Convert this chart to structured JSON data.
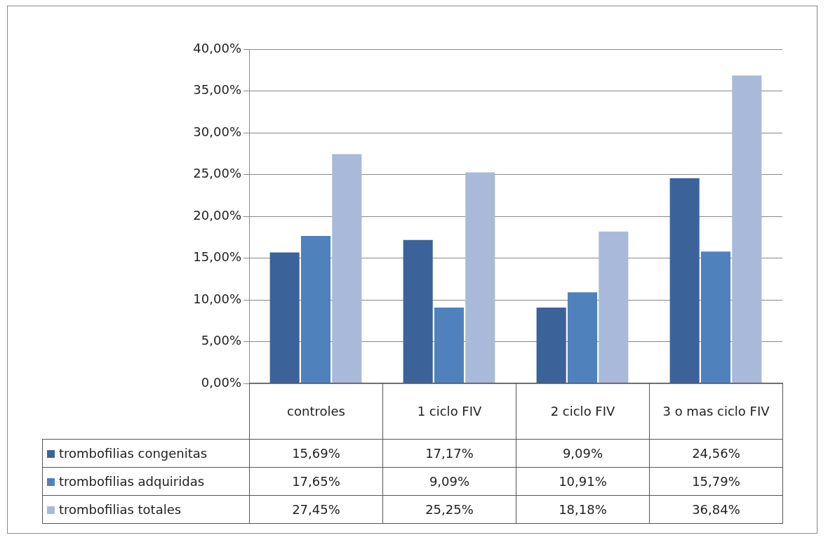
{
  "chart_data": {
    "type": "bar",
    "categories": [
      "controles",
      "1 ciclo FIV",
      "2 ciclo FIV",
      "3 o mas ciclo FIV"
    ],
    "series": [
      {
        "name": "trombofilias congenitas",
        "color": "#3c6399",
        "values": [
          15.69,
          17.17,
          9.09,
          24.56
        ],
        "value_labels": [
          "15,69%",
          "17,17%",
          "9,09%",
          "24,56%"
        ]
      },
      {
        "name": "trombofilias adquiridas",
        "color": "#4f81bd",
        "values": [
          17.65,
          9.09,
          10.91,
          15.79
        ],
        "value_labels": [
          "17,65%",
          "9,09%",
          "10,91%",
          "15,79%"
        ]
      },
      {
        "name": "trombofilias totales",
        "color": "#a9b9d9",
        "values": [
          27.45,
          25.25,
          18.18,
          36.84
        ],
        "value_labels": [
          "27,45%",
          "25,25%",
          "18,18%",
          "36,84%"
        ]
      }
    ],
    "ylim": [
      0,
      40
    ],
    "yticks": [
      {
        "value": 0,
        "label": "0,00%"
      },
      {
        "value": 5,
        "label": "5,00%"
      },
      {
        "value": 10,
        "label": "10,00%"
      },
      {
        "value": 15,
        "label": "15,00%"
      },
      {
        "value": 20,
        "label": "20,00%"
      },
      {
        "value": 25,
        "label": "25,00%"
      },
      {
        "value": 30,
        "label": "30,00%"
      },
      {
        "value": 35,
        "label": "35,00%"
      },
      {
        "value": 40,
        "label": "40,00%"
      }
    ],
    "grid": "y",
    "legend": "bottom left"
  }
}
